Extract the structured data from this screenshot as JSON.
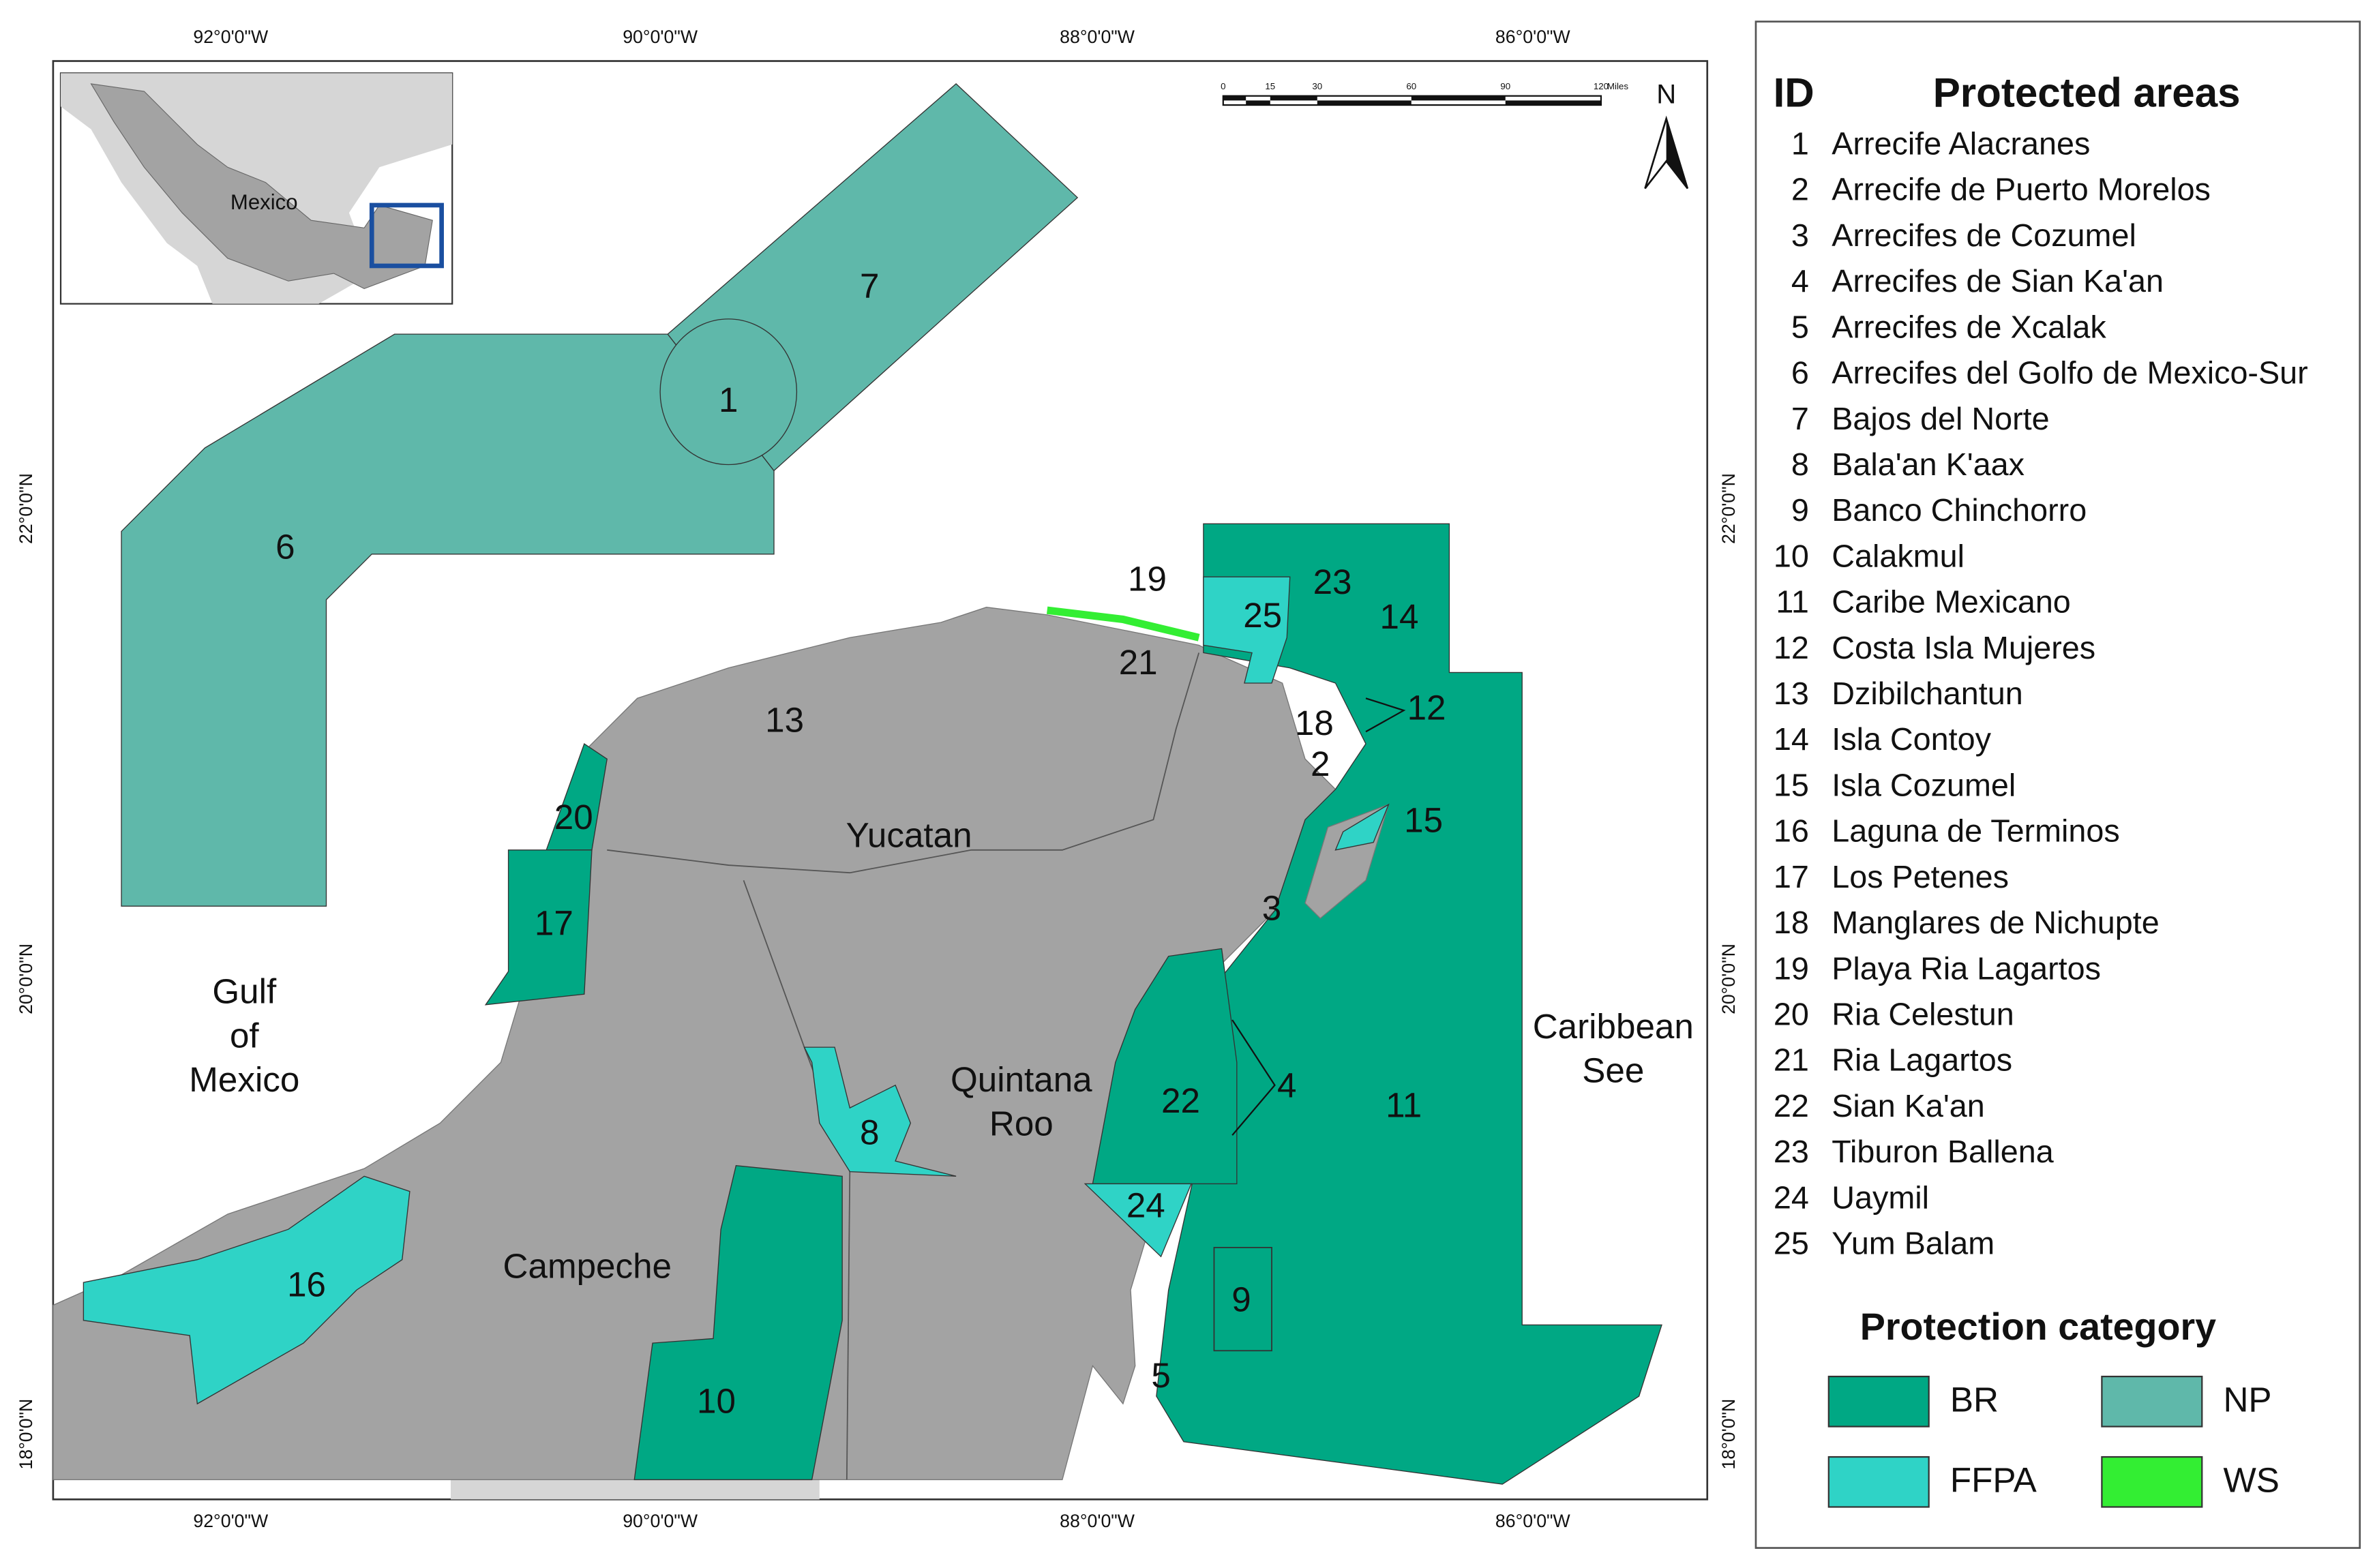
{
  "map": {
    "lon_labels": [
      "92°0'0\"W",
      "90°0'0\"W",
      "88°0'0\"W",
      "86°0'0\"W"
    ],
    "lat_labels": [
      "22°0'0\"N",
      "20°0'0\"N",
      "18°0'0\"N"
    ],
    "inset_label": "Mexico",
    "north": "N",
    "scale_labels": [
      "0",
      "15",
      "30",
      "60",
      "90",
      "120",
      "Miles"
    ],
    "regions": [
      {
        "lines": [
          "Gulf",
          "of",
          "Mexico"
        ]
      },
      {
        "lines": [
          "Yucatan"
        ]
      },
      {
        "lines": [
          "Quintana",
          "Roo"
        ]
      },
      {
        "lines": [
          "Campeche"
        ]
      },
      {
        "lines": [
          "Caribbean",
          "See"
        ]
      }
    ]
  },
  "legend": {
    "id_header": "ID",
    "name_header": "Protected areas",
    "items": [
      {
        "id": "1",
        "name": "Arrecife Alacranes"
      },
      {
        "id": "2",
        "name": "Arrecife de Puerto Morelos"
      },
      {
        "id": "3",
        "name": "Arrecifes de Cozumel"
      },
      {
        "id": "4",
        "name": "Arrecifes de Sian Ka'an"
      },
      {
        "id": "5",
        "name": "Arrecifes de Xcalak"
      },
      {
        "id": "6",
        "name": "Arrecifes del Golfo de Mexico-Sur"
      },
      {
        "id": "7",
        "name": "Bajos del Norte"
      },
      {
        "id": "8",
        "name": "Bala'an K'aax"
      },
      {
        "id": "9",
        "name": "Banco Chinchorro"
      },
      {
        "id": "10",
        "name": "Calakmul"
      },
      {
        "id": "11",
        "name": "Caribe Mexicano"
      },
      {
        "id": "12",
        "name": "Costa Isla Mujeres"
      },
      {
        "id": "13",
        "name": "Dzibilchantun"
      },
      {
        "id": "14",
        "name": "Isla Contoy"
      },
      {
        "id": "15",
        "name": "Isla Cozumel"
      },
      {
        "id": "16",
        "name": "Laguna de Terminos"
      },
      {
        "id": "17",
        "name": "Los Petenes"
      },
      {
        "id": "18",
        "name": "Manglares de Nichupte"
      },
      {
        "id": "19",
        "name": "Playa Ria Lagartos"
      },
      {
        "id": "20",
        "name": "Ria Celestun"
      },
      {
        "id": "21",
        "name": "Ria Lagartos"
      },
      {
        "id": "22",
        "name": "Sian Ka'an"
      },
      {
        "id": "23",
        "name": "Tiburon Ballena"
      },
      {
        "id": "24",
        "name": "Uaymil"
      },
      {
        "id": "25",
        "name": "Yum Balam"
      }
    ],
    "category_title": "Protection category",
    "categories": [
      {
        "code": "BR",
        "color": "#00a884"
      },
      {
        "code": "FFPA",
        "color": "#2fd3c6"
      },
      {
        "code": "NP",
        "color": "#5fb8aa"
      },
      {
        "code": "WS",
        "color": "#33ee33"
      }
    ]
  }
}
